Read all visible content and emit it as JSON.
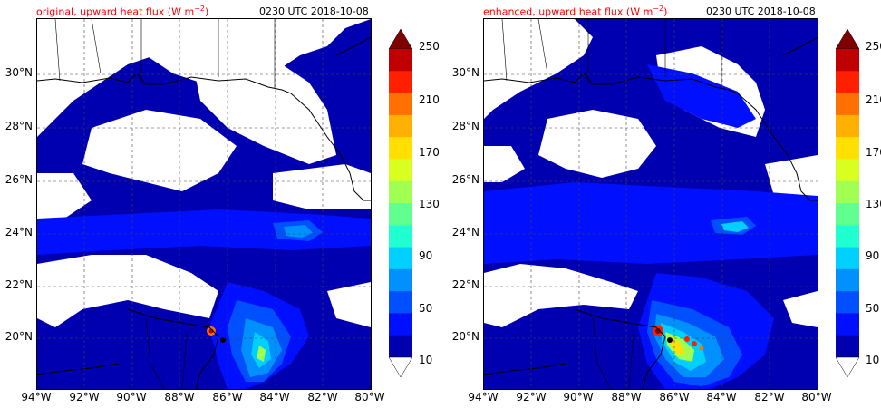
{
  "panels": [
    {
      "title_left": "original, upward heat flux (W m",
      "title_left_unit_sup": "−2",
      "title_left_close": ")",
      "title_right": "0230 UTC 2018-10-08"
    },
    {
      "title_left": "enhanced, upward heat flux (W m",
      "title_left_unit_sup": "−2",
      "title_left_close": ")",
      "title_right": "0230 UTC 2018-10-08"
    }
  ],
  "lat_labels": [
    "30°N",
    "28°N",
    "26°N",
    "24°N",
    "22°N",
    "20°N"
  ],
  "lon_labels": [
    "94°W",
    "92°W",
    "90°W",
    "88°W",
    "86°W",
    "84°W",
    "82°W",
    "80°W"
  ],
  "colorbar": {
    "levels": [
      "250",
      "210",
      "170",
      "130",
      "90",
      "50",
      "10"
    ],
    "colors": [
      "#7f0000",
      "#c00000",
      "#ff2000",
      "#ff7000",
      "#ffb000",
      "#ffe000",
      "#d8ff20",
      "#a0ff50",
      "#60ff90",
      "#20ffd0",
      "#00d0ff",
      "#0090ff",
      "#0050ff",
      "#0010ff",
      "#0000b0"
    ]
  },
  "chart_data": {
    "type": "heatmap",
    "variable": "upward heat flux",
    "unit": "W m-2",
    "time": "0230 UTC 2018-10-08",
    "extent": {
      "lon": [
        -94,
        -80
      ],
      "lat": [
        18,
        32
      ]
    },
    "colorbar_levels": [
      10,
      30,
      50,
      70,
      90,
      110,
      130,
      150,
      170,
      190,
      210,
      230,
      250
    ]
  }
}
